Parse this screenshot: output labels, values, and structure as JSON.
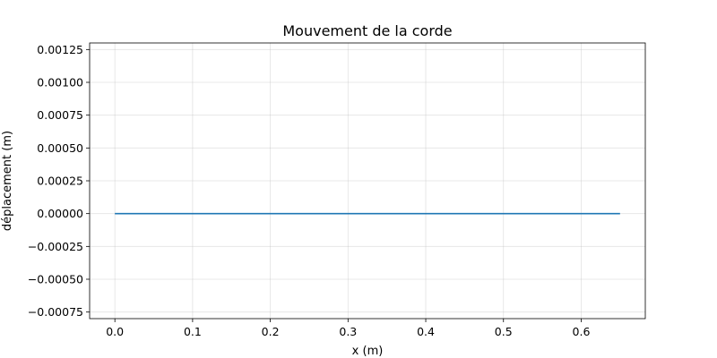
{
  "chart_data": {
    "type": "line",
    "title": "Mouvement de la corde",
    "xlabel": "x (m)",
    "ylabel": "déplacement (m)",
    "xlim": [
      -0.0325,
      0.6825
    ],
    "ylim": [
      -0.0008,
      0.0013
    ],
    "x_ticks": [
      0.0,
      0.1,
      0.2,
      0.3,
      0.4,
      0.5,
      0.6
    ],
    "x_tick_labels": [
      "0.0",
      "0.1",
      "0.2",
      "0.3",
      "0.4",
      "0.5",
      "0.6"
    ],
    "y_ticks": [
      -0.00075,
      -0.0005,
      -0.00025,
      0.0,
      0.00025,
      0.0005,
      0.00075,
      0.001,
      0.00125
    ],
    "y_tick_labels": [
      "−0.00075",
      "−0.00050",
      "−0.00025",
      "0.00000",
      "0.00025",
      "0.00050",
      "0.00075",
      "0.00100",
      "0.00125"
    ],
    "grid": true,
    "series": [
      {
        "color": "#1f77b4",
        "x": [
          0.0,
          0.65
        ],
        "y": [
          0.0,
          0.0
        ]
      }
    ]
  }
}
